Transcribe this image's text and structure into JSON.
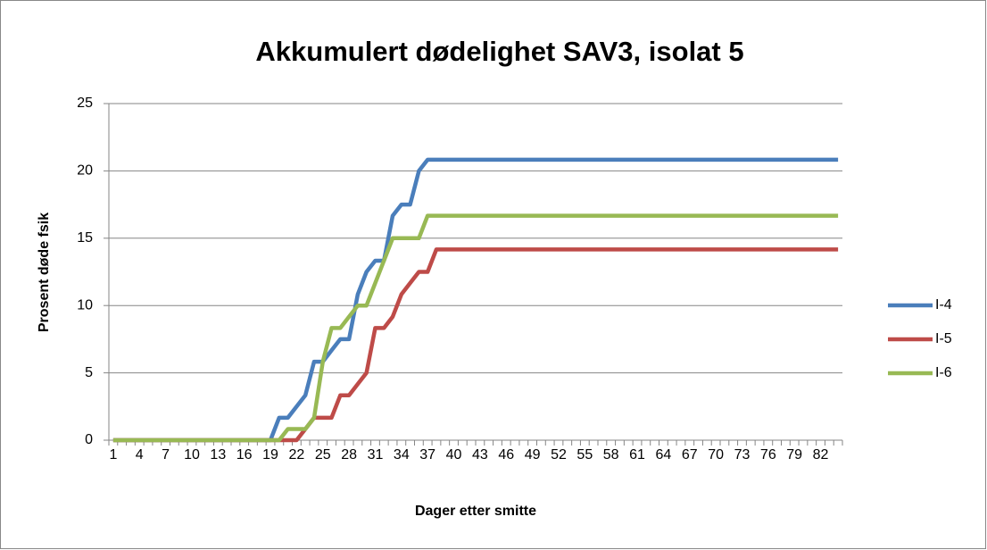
{
  "chart_data": {
    "type": "line",
    "title": "Akkumulert dødelighet SAV3, isolat 5",
    "xlabel": "Dager etter smitte",
    "ylabel": "Prosent døde fsik",
    "categories": [
      1,
      null,
      null,
      4,
      null,
      null,
      7,
      null,
      null,
      10,
      null,
      null,
      13,
      null,
      null,
      16,
      null,
      null,
      19,
      null,
      null,
      22,
      null,
      null,
      25,
      null,
      null,
      28,
      null,
      null,
      31,
      null,
      null,
      34,
      null,
      null,
      37,
      null,
      null,
      40,
      null,
      null,
      43,
      null,
      null,
      46,
      null,
      null,
      49,
      null,
      null,
      52,
      null,
      null,
      55,
      null,
      null,
      58,
      null,
      null,
      61,
      null,
      null,
      64,
      null,
      null,
      67,
      null,
      null,
      70,
      null,
      null,
      73,
      null,
      null,
      76,
      null,
      null,
      79,
      null,
      null,
      82,
      null,
      null
    ],
    "series": [
      {
        "name": "I-4",
        "color": "#4a7ebb",
        "values": [
          0,
          0,
          0,
          0,
          0,
          0,
          0,
          0,
          0,
          0,
          0,
          0,
          0,
          0,
          0,
          0,
          0,
          0,
          0,
          1.67,
          1.67,
          2.5,
          3.33,
          5.83,
          5.83,
          6.67,
          7.5,
          7.5,
          10.83,
          12.5,
          13.33,
          13.33,
          16.67,
          17.5,
          17.5,
          20,
          20.83,
          20.83,
          20.83,
          20.83,
          20.83,
          20.83,
          20.83,
          20.83,
          20.83,
          20.83,
          20.83,
          20.83,
          20.83,
          20.83,
          20.83,
          20.83,
          20.83,
          20.83,
          20.83,
          20.83,
          20.83,
          20.83,
          20.83,
          20.83,
          20.83,
          20.83,
          20.83,
          20.83,
          20.83,
          20.83,
          20.83,
          20.83,
          20.83,
          20.83,
          20.83,
          20.83,
          20.83,
          20.83,
          20.83,
          20.83,
          20.83,
          20.83,
          20.83,
          20.83,
          20.83,
          20.83,
          20.83,
          20.83
        ]
      },
      {
        "name": "I-5",
        "color": "#be4b48",
        "values": [
          0,
          0,
          0,
          0,
          0,
          0,
          0,
          0,
          0,
          0,
          0,
          0,
          0,
          0,
          0,
          0,
          0,
          0,
          0,
          0,
          0,
          0,
          0.83,
          1.67,
          1.67,
          1.67,
          3.33,
          3.33,
          4.17,
          5,
          8.33,
          8.33,
          9.17,
          10.83,
          11.67,
          12.5,
          12.5,
          14.17,
          14.17,
          14.17,
          14.17,
          14.17,
          14.17,
          14.17,
          14.17,
          14.17,
          14.17,
          14.17,
          14.17,
          14.17,
          14.17,
          14.17,
          14.17,
          14.17,
          14.17,
          14.17,
          14.17,
          14.17,
          14.17,
          14.17,
          14.17,
          14.17,
          14.17,
          14.17,
          14.17,
          14.17,
          14.17,
          14.17,
          14.17,
          14.17,
          14.17,
          14.17,
          14.17,
          14.17,
          14.17,
          14.17,
          14.17,
          14.17,
          14.17,
          14.17,
          14.17,
          14.17,
          14.17,
          14.17
        ]
      },
      {
        "name": "I-6",
        "color": "#98b954",
        "values": [
          0,
          0,
          0,
          0,
          0,
          0,
          0,
          0,
          0,
          0,
          0,
          0,
          0,
          0,
          0,
          0,
          0,
          0,
          0,
          0,
          0.83,
          0.83,
          0.83,
          1.67,
          5.83,
          8.33,
          8.33,
          9.17,
          10,
          10,
          11.67,
          13.33,
          15,
          15,
          15,
          15,
          16.67,
          16.67,
          16.67,
          16.67,
          16.67,
          16.67,
          16.67,
          16.67,
          16.67,
          16.67,
          16.67,
          16.67,
          16.67,
          16.67,
          16.67,
          16.67,
          16.67,
          16.67,
          16.67,
          16.67,
          16.67,
          16.67,
          16.67,
          16.67,
          16.67,
          16.67,
          16.67,
          16.67,
          16.67,
          16.67,
          16.67,
          16.67,
          16.67,
          16.67,
          16.67,
          16.67,
          16.67,
          16.67,
          16.67,
          16.67,
          16.67,
          16.67,
          16.67,
          16.67,
          16.67,
          16.67,
          16.67,
          16.67
        ]
      }
    ],
    "ylim": [
      0,
      25
    ],
    "yticks": [
      0,
      5,
      10,
      15,
      20,
      25
    ],
    "grid": true,
    "legend": "right"
  }
}
